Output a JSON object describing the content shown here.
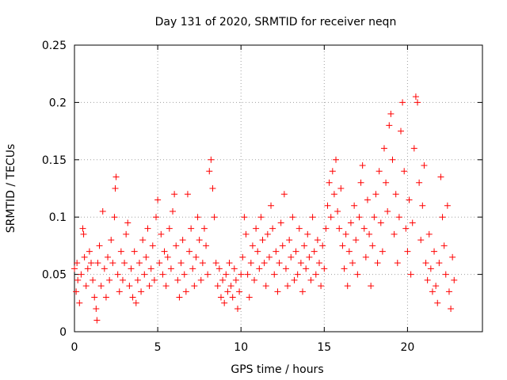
{
  "chart_data": {
    "type": "scatter",
    "title": "Day 131 of 2020, SRMTID for receiver neqn",
    "xlabel": "GPS time / hours",
    "ylabel": "SRMTID / TECUs",
    "xlim": [
      0,
      24.5
    ],
    "ylim": [
      0,
      0.25
    ],
    "x_ticks": [
      0,
      5,
      10,
      15,
      20
    ],
    "x_tick_labels": [
      "0",
      "5",
      "10",
      "15",
      "20"
    ],
    "y_ticks": [
      0,
      0.05,
      0.1,
      0.15,
      0.2,
      0.25
    ],
    "y_tick_labels": [
      "0",
      "0.05",
      "0.1",
      "0.15",
      "0.2",
      "0.25"
    ],
    "grid": true,
    "marker": "plus",
    "color": "#ff0000",
    "series": [
      {
        "name": "SRMTID",
        "points": [
          [
            0.0,
            0.055
          ],
          [
            0.1,
            0.035
          ],
          [
            0.15,
            0.06
          ],
          [
            0.2,
            0.045
          ],
          [
            0.3,
            0.025
          ],
          [
            0.4,
            0.05
          ],
          [
            0.5,
            0.09
          ],
          [
            0.55,
            0.085
          ],
          [
            0.6,
            0.065
          ],
          [
            0.7,
            0.04
          ],
          [
            0.8,
            0.055
          ],
          [
            0.9,
            0.07
          ],
          [
            1.0,
            0.06
          ],
          [
            1.1,
            0.045
          ],
          [
            1.2,
            0.03
          ],
          [
            1.3,
            0.02
          ],
          [
            1.35,
            0.01
          ],
          [
            1.4,
            0.06
          ],
          [
            1.5,
            0.075
          ],
          [
            1.6,
            0.04
          ],
          [
            1.7,
            0.105
          ],
          [
            1.8,
            0.055
          ],
          [
            1.9,
            0.03
          ],
          [
            2.0,
            0.065
          ],
          [
            2.1,
            0.045
          ],
          [
            2.2,
            0.08
          ],
          [
            2.3,
            0.06
          ],
          [
            2.4,
            0.1
          ],
          [
            2.45,
            0.125
          ],
          [
            2.5,
            0.135
          ],
          [
            2.6,
            0.05
          ],
          [
            2.7,
            0.035
          ],
          [
            2.8,
            0.07
          ],
          [
            2.9,
            0.045
          ],
          [
            3.0,
            0.06
          ],
          [
            3.1,
            0.085
          ],
          [
            3.2,
            0.095
          ],
          [
            3.3,
            0.04
          ],
          [
            3.4,
            0.055
          ],
          [
            3.5,
            0.03
          ],
          [
            3.6,
            0.07
          ],
          [
            3.7,
            0.025
          ],
          [
            3.8,
            0.045
          ],
          [
            3.9,
            0.06
          ],
          [
            4.0,
            0.035
          ],
          [
            4.1,
            0.08
          ],
          [
            4.2,
            0.05
          ],
          [
            4.3,
            0.065
          ],
          [
            4.4,
            0.09
          ],
          [
            4.5,
            0.04
          ],
          [
            4.6,
            0.055
          ],
          [
            4.7,
            0.075
          ],
          [
            4.8,
            0.045
          ],
          [
            4.9,
            0.1
          ],
          [
            5.0,
            0.115
          ],
          [
            5.1,
            0.06
          ],
          [
            5.2,
            0.085
          ],
          [
            5.3,
            0.05
          ],
          [
            5.4,
            0.07
          ],
          [
            5.5,
            0.04
          ],
          [
            5.6,
            0.065
          ],
          [
            5.7,
            0.09
          ],
          [
            5.8,
            0.055
          ],
          [
            5.9,
            0.105
          ],
          [
            6.0,
            0.12
          ],
          [
            6.1,
            0.075
          ],
          [
            6.2,
            0.045
          ],
          [
            6.3,
            0.03
          ],
          [
            6.4,
            0.06
          ],
          [
            6.5,
            0.08
          ],
          [
            6.6,
            0.05
          ],
          [
            6.7,
            0.035
          ],
          [
            6.8,
            0.12
          ],
          [
            6.9,
            0.07
          ],
          [
            7.0,
            0.09
          ],
          [
            7.1,
            0.055
          ],
          [
            7.2,
            0.04
          ],
          [
            7.3,
            0.065
          ],
          [
            7.4,
            0.1
          ],
          [
            7.5,
            0.08
          ],
          [
            7.6,
            0.045
          ],
          [
            7.7,
            0.06
          ],
          [
            7.8,
            0.09
          ],
          [
            7.9,
            0.075
          ],
          [
            8.0,
            0.05
          ],
          [
            8.1,
            0.14
          ],
          [
            8.2,
            0.15
          ],
          [
            8.3,
            0.125
          ],
          [
            8.4,
            0.1
          ],
          [
            8.5,
            0.06
          ],
          [
            8.6,
            0.04
          ],
          [
            8.7,
            0.055
          ],
          [
            8.8,
            0.03
          ],
          [
            8.9,
            0.045
          ],
          [
            9.0,
            0.025
          ],
          [
            9.1,
            0.05
          ],
          [
            9.2,
            0.035
          ],
          [
            9.3,
            0.06
          ],
          [
            9.4,
            0.04
          ],
          [
            9.5,
            0.03
          ],
          [
            9.6,
            0.055
          ],
          [
            9.7,
            0.045
          ],
          [
            9.8,
            0.02
          ],
          [
            9.9,
            0.035
          ],
          [
            10.0,
            0.05
          ],
          [
            10.1,
            0.065
          ],
          [
            10.2,
            0.1
          ],
          [
            10.3,
            0.085
          ],
          [
            10.4,
            0.05
          ],
          [
            10.5,
            0.03
          ],
          [
            10.6,
            0.06
          ],
          [
            10.7,
            0.075
          ],
          [
            10.8,
            0.045
          ],
          [
            10.9,
            0.09
          ],
          [
            11.0,
            0.07
          ],
          [
            11.1,
            0.055
          ],
          [
            11.2,
            0.1
          ],
          [
            11.3,
            0.08
          ],
          [
            11.4,
            0.06
          ],
          [
            11.5,
            0.04
          ],
          [
            11.6,
            0.085
          ],
          [
            11.7,
            0.065
          ],
          [
            11.8,
            0.11
          ],
          [
            11.9,
            0.09
          ],
          [
            12.0,
            0.05
          ],
          [
            12.1,
            0.07
          ],
          [
            12.2,
            0.035
          ],
          [
            12.3,
            0.06
          ],
          [
            12.4,
            0.095
          ],
          [
            12.5,
            0.075
          ],
          [
            12.6,
            0.12
          ],
          [
            12.7,
            0.055
          ],
          [
            12.8,
            0.04
          ],
          [
            12.9,
            0.08
          ],
          [
            13.0,
            0.065
          ],
          [
            13.1,
            0.1
          ],
          [
            13.2,
            0.045
          ],
          [
            13.3,
            0.07
          ],
          [
            13.4,
            0.05
          ],
          [
            13.5,
            0.09
          ],
          [
            13.6,
            0.06
          ],
          [
            13.7,
            0.035
          ],
          [
            13.8,
            0.075
          ],
          [
            13.9,
            0.055
          ],
          [
            14.0,
            0.085
          ],
          [
            14.1,
            0.065
          ],
          [
            14.2,
            0.045
          ],
          [
            14.3,
            0.1
          ],
          [
            14.4,
            0.07
          ],
          [
            14.5,
            0.05
          ],
          [
            14.6,
            0.08
          ],
          [
            14.7,
            0.06
          ],
          [
            14.8,
            0.04
          ],
          [
            14.9,
            0.075
          ],
          [
            15.0,
            0.055
          ],
          [
            15.1,
            0.09
          ],
          [
            15.2,
            0.11
          ],
          [
            15.3,
            0.13
          ],
          [
            15.4,
            0.1
          ],
          [
            15.5,
            0.14
          ],
          [
            15.6,
            0.12
          ],
          [
            15.7,
            0.15
          ],
          [
            15.8,
            0.105
          ],
          [
            15.9,
            0.09
          ],
          [
            16.0,
            0.125
          ],
          [
            16.1,
            0.075
          ],
          [
            16.2,
            0.055
          ],
          [
            16.3,
            0.085
          ],
          [
            16.4,
            0.04
          ],
          [
            16.5,
            0.07
          ],
          [
            16.6,
            0.095
          ],
          [
            16.7,
            0.06
          ],
          [
            16.8,
            0.11
          ],
          [
            16.9,
            0.08
          ],
          [
            17.0,
            0.05
          ],
          [
            17.1,
            0.1
          ],
          [
            17.2,
            0.13
          ],
          [
            17.3,
            0.145
          ],
          [
            17.4,
            0.09
          ],
          [
            17.5,
            0.065
          ],
          [
            17.6,
            0.115
          ],
          [
            17.7,
            0.085
          ],
          [
            17.8,
            0.04
          ],
          [
            17.9,
            0.075
          ],
          [
            18.0,
            0.1
          ],
          [
            18.1,
            0.12
          ],
          [
            18.2,
            0.06
          ],
          [
            18.3,
            0.14
          ],
          [
            18.4,
            0.095
          ],
          [
            18.5,
            0.07
          ],
          [
            18.6,
            0.16
          ],
          [
            18.7,
            0.13
          ],
          [
            18.8,
            0.105
          ],
          [
            18.9,
            0.18
          ],
          [
            19.0,
            0.19
          ],
          [
            19.1,
            0.15
          ],
          [
            19.2,
            0.085
          ],
          [
            19.3,
            0.12
          ],
          [
            19.4,
            0.06
          ],
          [
            19.5,
            0.1
          ],
          [
            19.6,
            0.175
          ],
          [
            19.7,
            0.2
          ],
          [
            19.8,
            0.14
          ],
          [
            19.9,
            0.09
          ],
          [
            20.0,
            0.07
          ],
          [
            20.1,
            0.115
          ],
          [
            20.2,
            0.05
          ],
          [
            20.3,
            0.095
          ],
          [
            20.4,
            0.16
          ],
          [
            20.5,
            0.205
          ],
          [
            20.6,
            0.2
          ],
          [
            20.7,
            0.13
          ],
          [
            20.8,
            0.08
          ],
          [
            20.9,
            0.11
          ],
          [
            21.0,
            0.145
          ],
          [
            21.1,
            0.06
          ],
          [
            21.2,
            0.045
          ],
          [
            21.3,
            0.085
          ],
          [
            21.4,
            0.055
          ],
          [
            21.5,
            0.035
          ],
          [
            21.6,
            0.07
          ],
          [
            21.7,
            0.04
          ],
          [
            21.8,
            0.025
          ],
          [
            21.9,
            0.06
          ],
          [
            22.0,
            0.135
          ],
          [
            22.1,
            0.1
          ],
          [
            22.2,
            0.075
          ],
          [
            22.3,
            0.05
          ],
          [
            22.4,
            0.11
          ],
          [
            22.5,
            0.035
          ],
          [
            22.6,
            0.02
          ],
          [
            22.7,
            0.065
          ],
          [
            22.8,
            0.045
          ]
        ]
      }
    ]
  }
}
